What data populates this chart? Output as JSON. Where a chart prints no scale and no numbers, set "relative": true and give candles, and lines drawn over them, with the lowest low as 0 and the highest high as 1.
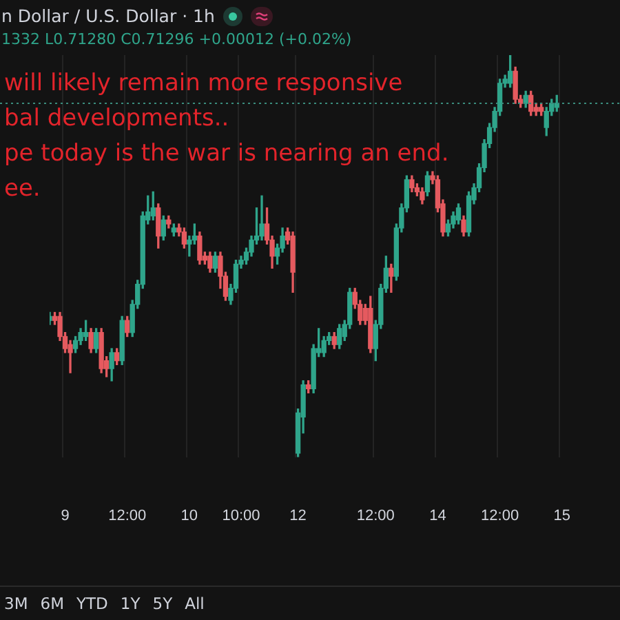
{
  "chart_data": {
    "type": "candlestick",
    "title": "n Dollar / U.S. Dollar · 1h",
    "subtitle": "1332 L0.71280 C0.71296 +0.00012 (+0.02%)",
    "annotations": [
      "will likely remain more responsive",
      "bal developments..",
      "pe today is the war is nearing an end.",
      "ee.",
      "3M 6M YTD 1Y 5Y All"
    ],
    "relative": true,
    "grid": "x",
    "legend": false,
    "ref_lines": [
      {
        "axis": "y",
        "value": 0.88,
        "color": "#3a8c7c",
        "line_style": "dotted"
      }
    ],
    "categories": [
      null,
      null,
      null,
      "9",
      null,
      null,
      null,
      null,
      null,
      null,
      null,
      null,
      null,
      null,
      null,
      "12:00",
      null,
      null,
      null,
      null,
      null,
      null,
      null,
      null,
      null,
      null,
      null,
      "10",
      null,
      null,
      null,
      null,
      null,
      null,
      null,
      null,
      null,
      "10:00",
      null,
      null,
      null,
      null,
      null,
      null,
      null,
      null,
      null,
      null,
      "12",
      null,
      null,
      null,
      null,
      null,
      null,
      null,
      null,
      null,
      null,
      null,
      null,
      null,
      null,
      "12:00",
      null,
      null,
      null,
      null,
      null,
      null,
      null,
      null,
      null,
      null,
      null,
      "14",
      null,
      null,
      null,
      null,
      null,
      null,
      null,
      null,
      null,
      null,
      null,
      "12:00",
      null,
      null,
      null,
      null,
      null,
      null,
      null,
      null,
      null,
      null,
      null,
      "15"
    ],
    "ohlc": [
      [
        0.34,
        0.36,
        0.33,
        0.35
      ],
      [
        0.35,
        0.36,
        0.33,
        0.34
      ],
      [
        0.35,
        0.36,
        0.29,
        0.3
      ],
      [
        0.3,
        0.31,
        0.26,
        0.27
      ],
      [
        0.28,
        0.29,
        0.21,
        0.26
      ],
      [
        0.27,
        0.3,
        0.26,
        0.29
      ],
      [
        0.29,
        0.32,
        0.28,
        0.31
      ],
      [
        0.3,
        0.34,
        0.29,
        0.31
      ],
      [
        0.31,
        0.32,
        0.26,
        0.27
      ],
      [
        0.27,
        0.32,
        0.26,
        0.31
      ],
      [
        0.31,
        0.32,
        0.21,
        0.22
      ],
      [
        0.24,
        0.25,
        0.2,
        0.22
      ],
      [
        0.22,
        0.27,
        0.19,
        0.26
      ],
      [
        0.26,
        0.27,
        0.23,
        0.24
      ],
      [
        0.24,
        0.35,
        0.23,
        0.34
      ],
      [
        0.34,
        0.35,
        0.3,
        0.31
      ],
      [
        0.31,
        0.39,
        0.3,
        0.38
      ],
      [
        0.38,
        0.44,
        0.37,
        0.43
      ],
      [
        0.43,
        0.61,
        0.42,
        0.6
      ],
      [
        0.59,
        0.65,
        0.58,
        0.61
      ],
      [
        0.6,
        0.66,
        0.59,
        0.62
      ],
      [
        0.62,
        0.63,
        0.52,
        0.55
      ],
      [
        0.55,
        0.6,
        0.54,
        0.59
      ],
      [
        0.59,
        0.6,
        0.57,
        0.58
      ],
      [
        0.56,
        0.58,
        0.55,
        0.57
      ],
      [
        0.57,
        0.58,
        0.55,
        0.56
      ],
      [
        0.56,
        0.57,
        0.52,
        0.53
      ],
      [
        0.53,
        0.55,
        0.5,
        0.54
      ],
      [
        0.54,
        0.58,
        0.53,
        0.55
      ],
      [
        0.55,
        0.56,
        0.48,
        0.49
      ],
      [
        0.5,
        0.51,
        0.48,
        0.49
      ],
      [
        0.5,
        0.51,
        0.46,
        0.47
      ],
      [
        0.47,
        0.51,
        0.46,
        0.5
      ],
      [
        0.5,
        0.51,
        0.42,
        0.45
      ],
      [
        0.45,
        0.46,
        0.39,
        0.4
      ],
      [
        0.39,
        0.43,
        0.38,
        0.42
      ],
      [
        0.42,
        0.49,
        0.41,
        0.48
      ],
      [
        0.48,
        0.5,
        0.47,
        0.49
      ],
      [
        0.49,
        0.52,
        0.48,
        0.51
      ],
      [
        0.51,
        0.55,
        0.5,
        0.54
      ],
      [
        0.54,
        0.62,
        0.53,
        0.55
      ],
      [
        0.55,
        0.65,
        0.54,
        0.58
      ],
      [
        0.58,
        0.62,
        0.53,
        0.54
      ],
      [
        0.54,
        0.55,
        0.47,
        0.5
      ],
      [
        0.5,
        0.53,
        0.48,
        0.52
      ],
      [
        0.52,
        0.57,
        0.51,
        0.55
      ],
      [
        0.56,
        0.57,
        0.53,
        0.54
      ],
      [
        0.55,
        0.56,
        0.41,
        0.46
      ],
      [
        0.01,
        0.12,
        0,
        0.11
      ],
      [
        0.1,
        0.19,
        0.06,
        0.18
      ],
      [
        0.18,
        0.19,
        0.16,
        0.17
      ],
      [
        0.17,
        0.28,
        0.16,
        0.27
      ],
      [
        0.26,
        0.32,
        0.25,
        0.27
      ],
      [
        0.26,
        0.3,
        0.25,
        0.29
      ],
      [
        0.29,
        0.31,
        0.28,
        0.3
      ],
      [
        0.3,
        0.31,
        0.27,
        0.28
      ],
      [
        0.28,
        0.33,
        0.27,
        0.32
      ],
      [
        0.3,
        0.34,
        0.29,
        0.33
      ],
      [
        0.33,
        0.42,
        0.32,
        0.41
      ],
      [
        0.41,
        0.42,
        0.37,
        0.38
      ],
      [
        0.38,
        0.39,
        0.33,
        0.34
      ],
      [
        0.37,
        0.38,
        0.33,
        0.34
      ],
      [
        0.37,
        0.4,
        0.26,
        0.27
      ],
      [
        0.27,
        0.34,
        0.24,
        0.33
      ],
      [
        0.33,
        0.43,
        0.32,
        0.42
      ],
      [
        0.42,
        0.5,
        0.41,
        0.47
      ],
      [
        0.47,
        0.48,
        0.41,
        0.45
      ],
      [
        0.45,
        0.58,
        0.44,
        0.57
      ],
      [
        0.57,
        0.63,
        0.56,
        0.62
      ],
      [
        0.62,
        0.7,
        0.61,
        0.69
      ],
      [
        0.69,
        0.7,
        0.66,
        0.67
      ],
      [
        0.67,
        0.68,
        0.65,
        0.66
      ],
      [
        0.66,
        0.67,
        0.63,
        0.64
      ],
      [
        0.66,
        0.71,
        0.65,
        0.7
      ],
      [
        0.7,
        0.71,
        0.68,
        0.69
      ],
      [
        0.69,
        0.7,
        0.61,
        0.62
      ],
      [
        0.63,
        0.64,
        0.55,
        0.56
      ],
      [
        0.56,
        0.59,
        0.55,
        0.58
      ],
      [
        0.58,
        0.61,
        0.57,
        0.6
      ],
      [
        0.59,
        0.63,
        0.58,
        0.62
      ],
      [
        0.59,
        0.6,
        0.55,
        0.56
      ],
      [
        0.56,
        0.66,
        0.55,
        0.65
      ],
      [
        0.64,
        0.68,
        0.63,
        0.67
      ],
      [
        0.67,
        0.73,
        0.66,
        0.72
      ],
      [
        0.72,
        0.79,
        0.71,
        0.78
      ],
      [
        0.78,
        0.83,
        0.77,
        0.82
      ],
      [
        0.82,
        0.87,
        0.81,
        0.86
      ],
      [
        0.86,
        0.94,
        0.85,
        0.93
      ],
      [
        0.93,
        0.95,
        0.92,
        0.94
      ],
      [
        0.93,
        1,
        0.92,
        0.96
      ],
      [
        0.96,
        0.97,
        0.88,
        0.89
      ],
      [
        0.89,
        0.9,
        0.87,
        0.88
      ],
      [
        0.88,
        0.91,
        0.87,
        0.9
      ],
      [
        0.9,
        0.91,
        0.85,
        0.86
      ],
      [
        0.87,
        0.88,
        0.85,
        0.86
      ],
      [
        0.87,
        0.88,
        0.85,
        0.86
      ],
      [
        0.82,
        0.87,
        0.8,
        0.86
      ],
      [
        0.86,
        0.89,
        0.85,
        0.88
      ],
      [
        0.87,
        0.9,
        0.86,
        0.88
      ],
      null
    ],
    "colors": [
      "#2fa58b",
      "#e55a5f",
      "#e55a5f",
      "#e55a5f",
      "#e55a5f",
      "#2fa58b",
      "#2fa58b",
      "#2fa58b",
      "#e55a5f",
      "#2fa58b",
      "#e55a5f",
      "#e55a5f",
      "#2fa58b",
      "#e55a5f",
      "#2fa58b",
      "#e55a5f",
      "#2fa58b",
      "#2fa58b",
      "#2fa58b",
      "#2fa58b",
      "#2fa58b",
      "#e55a5f",
      "#2fa58b",
      "#e55a5f",
      "#2fa58b",
      "#e55a5f",
      "#e55a5f",
      "#2fa58b",
      "#2fa58b",
      "#e55a5f",
      "#e55a5f",
      "#e55a5f",
      "#2fa58b",
      "#e55a5f",
      "#e55a5f",
      "#2fa58b",
      "#2fa58b",
      "#2fa58b",
      "#2fa58b",
      "#2fa58b",
      "#2fa58b",
      "#2fa58b",
      "#e55a5f",
      "#e55a5f",
      "#2fa58b",
      "#2fa58b",
      "#e55a5f",
      "#e55a5f",
      "#2fa58b",
      "#2fa58b",
      "#e55a5f",
      "#2fa58b",
      "#2fa58b",
      "#2fa58b",
      "#2fa58b",
      "#e55a5f",
      "#2fa58b",
      "#2fa58b",
      "#2fa58b",
      "#e55a5f",
      "#e55a5f",
      "#e55a5f",
      "#e55a5f",
      "#2fa58b",
      "#2fa58b",
      "#2fa58b",
      "#e55a5f",
      "#2fa58b",
      "#2fa58b",
      "#2fa58b",
      "#e55a5f",
      "#e55a5f",
      "#e55a5f",
      "#2fa58b",
      "#e55a5f",
      "#e55a5f",
      "#e55a5f",
      "#2fa58b",
      "#2fa58b",
      "#2fa58b",
      "#e55a5f",
      "#2fa58b",
      "#2fa58b",
      "#2fa58b",
      "#2fa58b",
      "#2fa58b",
      "#2fa58b",
      "#2fa58b",
      "#2fa58b",
      "#2fa58b",
      "#e55a5f",
      "#e55a5f",
      "#2fa58b",
      "#e55a5f",
      "#e55a5f",
      "#e55a5f",
      "#2fa58b",
      "#2fa58b",
      "#2fa58b",
      null
    ]
  }
}
